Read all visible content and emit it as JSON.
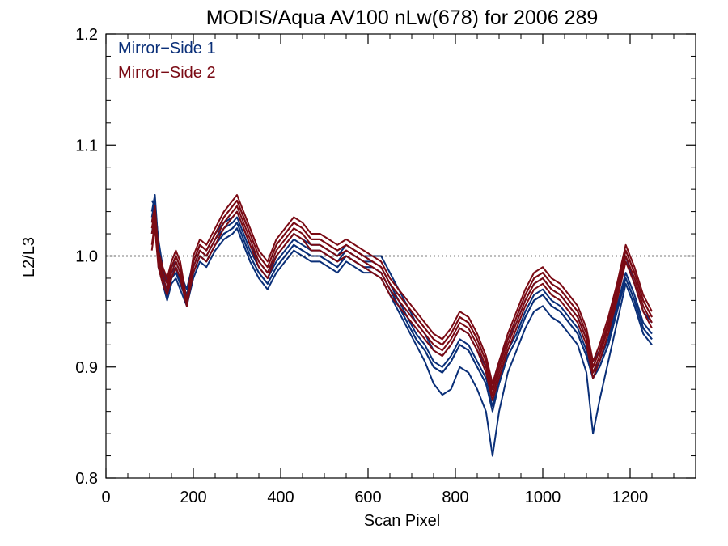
{
  "chart_data": {
    "type": "line",
    "title": "MODIS/Aqua AV100 nLw(678) for 2006 289",
    "xlabel": "Scan Pixel",
    "ylabel": "L2/L3",
    "xlim": [
      0,
      1350
    ],
    "ylim": [
      0.8,
      1.2
    ],
    "xticks": [
      0,
      200,
      400,
      600,
      800,
      1000,
      1200
    ],
    "xtick_labels": [
      "0",
      "200",
      "400",
      "600",
      "800",
      "1000",
      "1200"
    ],
    "yticks": [
      0.8,
      0.9,
      1.0,
      1.1,
      1.2
    ],
    "ytick_labels": [
      "0.8",
      "0.9",
      "1.0",
      "1.1",
      "1.2"
    ],
    "reference_line": {
      "y": 1.0,
      "style": "dotted"
    },
    "legend": {
      "placement": "top-left",
      "entries": [
        {
          "label": "Mirror−Side 1",
          "color": "#0a2f78"
        },
        {
          "label": "Mirror−Side 2",
          "color": "#7a0a14"
        }
      ]
    },
    "colors": {
      "mirror_side_1": "#0a2f78",
      "mirror_side_2": "#7a0a14"
    },
    "x": [
      105,
      112,
      120,
      130,
      140,
      150,
      160,
      170,
      185,
      200,
      215,
      230,
      250,
      270,
      290,
      300,
      310,
      330,
      350,
      370,
      390,
      410,
      430,
      450,
      470,
      490,
      510,
      530,
      550,
      570,
      590,
      610,
      630,
      650,
      670,
      690,
      710,
      730,
      750,
      770,
      790,
      810,
      830,
      850,
      870,
      885,
      900,
      920,
      940,
      960,
      980,
      1000,
      1020,
      1040,
      1060,
      1080,
      1100,
      1115,
      1130,
      1150,
      1170,
      1190,
      1210,
      1230,
      1250
    ],
    "series": [
      {
        "group": 1,
        "values": [
          1.04,
          1.055,
          1.01,
          0.985,
          0.965,
          0.98,
          0.985,
          0.975,
          0.96,
          0.985,
          1.0,
          0.995,
          1.01,
          1.02,
          1.025,
          1.03,
          1.02,
          1.0,
          0.985,
          0.975,
          0.99,
          1.0,
          1.01,
          1.005,
          1.0,
          1.0,
          0.995,
          0.99,
          1.0,
          0.995,
          0.99,
          0.99,
          0.985,
          0.97,
          0.955,
          0.94,
          0.925,
          0.915,
          0.9,
          0.895,
          0.905,
          0.92,
          0.915,
          0.9,
          0.885,
          0.86,
          0.885,
          0.91,
          0.925,
          0.945,
          0.96,
          0.965,
          0.955,
          0.95,
          0.94,
          0.93,
          0.91,
          0.89,
          0.9,
          0.92,
          0.95,
          0.98,
          0.96,
          0.935,
          0.925
        ]
      },
      {
        "group": 1,
        "values": [
          1.03,
          1.05,
          1.0,
          0.98,
          0.97,
          0.985,
          0.99,
          0.98,
          0.965,
          0.99,
          1.005,
          1.0,
          1.015,
          1.025,
          1.03,
          1.035,
          1.025,
          1.005,
          0.99,
          0.98,
          0.995,
          1.005,
          1.015,
          1.01,
          1.005,
          1.005,
          1.0,
          0.995,
          1.005,
          1.0,
          0.995,
          0.995,
          0.99,
          0.975,
          0.96,
          0.945,
          0.93,
          0.92,
          0.905,
          0.9,
          0.91,
          0.925,
          0.92,
          0.905,
          0.89,
          0.87,
          0.89,
          0.915,
          0.93,
          0.95,
          0.965,
          0.97,
          0.96,
          0.955,
          0.945,
          0.935,
          0.915,
          0.895,
          0.905,
          0.925,
          0.955,
          0.985,
          0.965,
          0.94,
          0.93
        ]
      },
      {
        "group": 1,
        "values": [
          1.02,
          1.04,
          0.99,
          0.975,
          0.96,
          0.975,
          0.98,
          0.97,
          0.955,
          0.98,
          0.995,
          0.99,
          1.005,
          1.015,
          1.02,
          1.025,
          1.015,
          0.995,
          0.98,
          0.97,
          0.985,
          0.995,
          1.005,
          1.0,
          0.995,
          0.995,
          0.99,
          0.985,
          0.995,
          0.99,
          0.985,
          0.985,
          0.98,
          0.965,
          0.95,
          0.935,
          0.92,
          0.905,
          0.885,
          0.875,
          0.88,
          0.9,
          0.895,
          0.88,
          0.86,
          0.82,
          0.86,
          0.895,
          0.915,
          0.935,
          0.95,
          0.955,
          0.945,
          0.94,
          0.93,
          0.92,
          0.895,
          0.84,
          0.87,
          0.905,
          0.94,
          0.975,
          0.955,
          0.93,
          0.92
        ]
      },
      {
        "group": 1,
        "values": [
          1.05,
          1.045,
          1.015,
          0.99,
          0.975,
          0.99,
          0.995,
          0.985,
          0.97,
          0.995,
          1.01,
          1.005,
          1.02,
          1.03,
          1.035,
          1.04,
          1.03,
          1.01,
          0.995,
          0.985,
          1.0,
          1.01,
          1.02,
          1.015,
          1.01,
          1.01,
          1.005,
          1.0,
          1.01,
          1.005,
          1.0,
          1.0,
          1.0,
          0.985,
          0.97,
          0.955,
          0.94,
          0.93,
          0.915,
          0.91,
          0.92,
          0.935,
          0.93,
          0.915,
          0.9,
          0.885,
          0.905,
          0.925,
          0.94,
          0.96,
          0.975,
          0.98,
          0.97,
          0.965,
          0.955,
          0.945,
          0.925,
          0.905,
          0.915,
          0.935,
          0.965,
          1.0,
          0.975,
          0.95,
          0.94
        ]
      },
      {
        "group": 1,
        "values": [
          1.035,
          1.05,
          1.005,
          0.98,
          0.965,
          0.98,
          0.99,
          0.975,
          0.96,
          0.985,
          1.0,
          0.995,
          1.01,
          1.02,
          1.025,
          1.03,
          1.02,
          1.0,
          0.985,
          0.975,
          0.99,
          1.0,
          1.01,
          1.005,
          1.0,
          1.0,
          0.995,
          0.99,
          1.0,
          0.995,
          0.99,
          0.99,
          0.985,
          0.97,
          0.955,
          0.94,
          0.925,
          0.915,
          0.9,
          0.895,
          0.905,
          0.92,
          0.915,
          0.9,
          0.885,
          0.865,
          0.885,
          0.91,
          0.925,
          0.945,
          0.96,
          0.965,
          0.955,
          0.95,
          0.94,
          0.93,
          0.91,
          0.89,
          0.9,
          0.92,
          0.95,
          0.98,
          0.96,
          0.935,
          0.925
        ]
      },
      {
        "group": 2,
        "values": [
          1.02,
          1.035,
          1.0,
          0.985,
          0.975,
          0.99,
          1.0,
          0.99,
          0.955,
          0.995,
          1.01,
          1.005,
          1.02,
          1.035,
          1.045,
          1.05,
          1.04,
          1.02,
          1.0,
          0.99,
          1.01,
          1.02,
          1.03,
          1.025,
          1.015,
          1.015,
          1.01,
          1.005,
          1.01,
          1.005,
          1.0,
          0.995,
          0.99,
          0.975,
          0.965,
          0.955,
          0.945,
          0.935,
          0.925,
          0.92,
          0.93,
          0.945,
          0.94,
          0.925,
          0.905,
          0.88,
          0.9,
          0.925,
          0.945,
          0.965,
          0.98,
          0.985,
          0.975,
          0.97,
          0.96,
          0.95,
          0.93,
          0.9,
          0.915,
          0.94,
          0.97,
          1.005,
          0.985,
          0.96,
          0.945
        ]
      },
      {
        "group": 2,
        "values": [
          1.01,
          1.03,
          0.995,
          0.98,
          0.97,
          0.985,
          0.995,
          0.985,
          0.958,
          0.99,
          1.005,
          1.0,
          1.015,
          1.03,
          1.04,
          1.045,
          1.035,
          1.015,
          0.995,
          0.985,
          1.005,
          1.015,
          1.025,
          1.02,
          1.01,
          1.01,
          1.005,
          1.0,
          1.005,
          1.0,
          0.995,
          0.99,
          0.985,
          0.97,
          0.96,
          0.95,
          0.94,
          0.93,
          0.92,
          0.915,
          0.925,
          0.94,
          0.935,
          0.92,
          0.9,
          0.875,
          0.895,
          0.92,
          0.94,
          0.96,
          0.975,
          0.98,
          0.97,
          0.965,
          0.955,
          0.945,
          0.925,
          0.895,
          0.91,
          0.935,
          0.965,
          1.0,
          0.98,
          0.955,
          0.94
        ]
      },
      {
        "group": 2,
        "values": [
          1.03,
          1.045,
          1.005,
          0.99,
          0.98,
          0.995,
          1.005,
          0.995,
          0.96,
          1.0,
          1.015,
          1.01,
          1.025,
          1.04,
          1.05,
          1.055,
          1.045,
          1.025,
          1.005,
          0.995,
          1.015,
          1.025,
          1.035,
          1.03,
          1.02,
          1.02,
          1.015,
          1.01,
          1.015,
          1.01,
          1.005,
          1.0,
          0.995,
          0.98,
          0.97,
          0.96,
          0.95,
          0.94,
          0.93,
          0.925,
          0.935,
          0.95,
          0.945,
          0.93,
          0.91,
          0.885,
          0.905,
          0.93,
          0.95,
          0.97,
          0.985,
          0.99,
          0.98,
          0.975,
          0.965,
          0.955,
          0.935,
          0.905,
          0.92,
          0.945,
          0.975,
          1.01,
          0.99,
          0.965,
          0.95
        ]
      },
      {
        "group": 2,
        "values": [
          1.005,
          1.025,
          0.99,
          0.975,
          0.965,
          0.98,
          0.99,
          0.98,
          0.955,
          0.985,
          1.0,
          0.995,
          1.01,
          1.025,
          1.035,
          1.04,
          1.03,
          1.01,
          0.99,
          0.98,
          1.0,
          1.01,
          1.02,
          1.015,
          1.005,
          1.005,
          1.0,
          0.995,
          1.0,
          0.995,
          0.99,
          0.985,
          0.98,
          0.965,
          0.955,
          0.945,
          0.935,
          0.925,
          0.915,
          0.91,
          0.92,
          0.935,
          0.93,
          0.915,
          0.895,
          0.87,
          0.89,
          0.915,
          0.935,
          0.955,
          0.97,
          0.975,
          0.965,
          0.96,
          0.95,
          0.94,
          0.92,
          0.89,
          0.905,
          0.93,
          0.96,
          0.995,
          0.975,
          0.95,
          0.935
        ]
      },
      {
        "group": 2,
        "values": [
          1.025,
          1.04,
          1.0,
          0.985,
          0.975,
          0.99,
          1.0,
          0.99,
          0.957,
          0.995,
          1.01,
          1.005,
          1.02,
          1.035,
          1.045,
          1.05,
          1.04,
          1.02,
          1.0,
          0.99,
          1.01,
          1.02,
          1.03,
          1.025,
          1.015,
          1.015,
          1.01,
          1.005,
          1.01,
          1.005,
          1.0,
          0.995,
          0.99,
          0.975,
          0.965,
          0.955,
          0.945,
          0.935,
          0.925,
          0.92,
          0.93,
          0.945,
          0.94,
          0.925,
          0.905,
          0.88,
          0.9,
          0.925,
          0.945,
          0.965,
          0.98,
          0.985,
          0.975,
          0.97,
          0.96,
          0.95,
          0.93,
          0.9,
          0.915,
          0.94,
          0.97,
          1.005,
          0.985,
          0.96,
          0.945
        ]
      }
    ]
  }
}
